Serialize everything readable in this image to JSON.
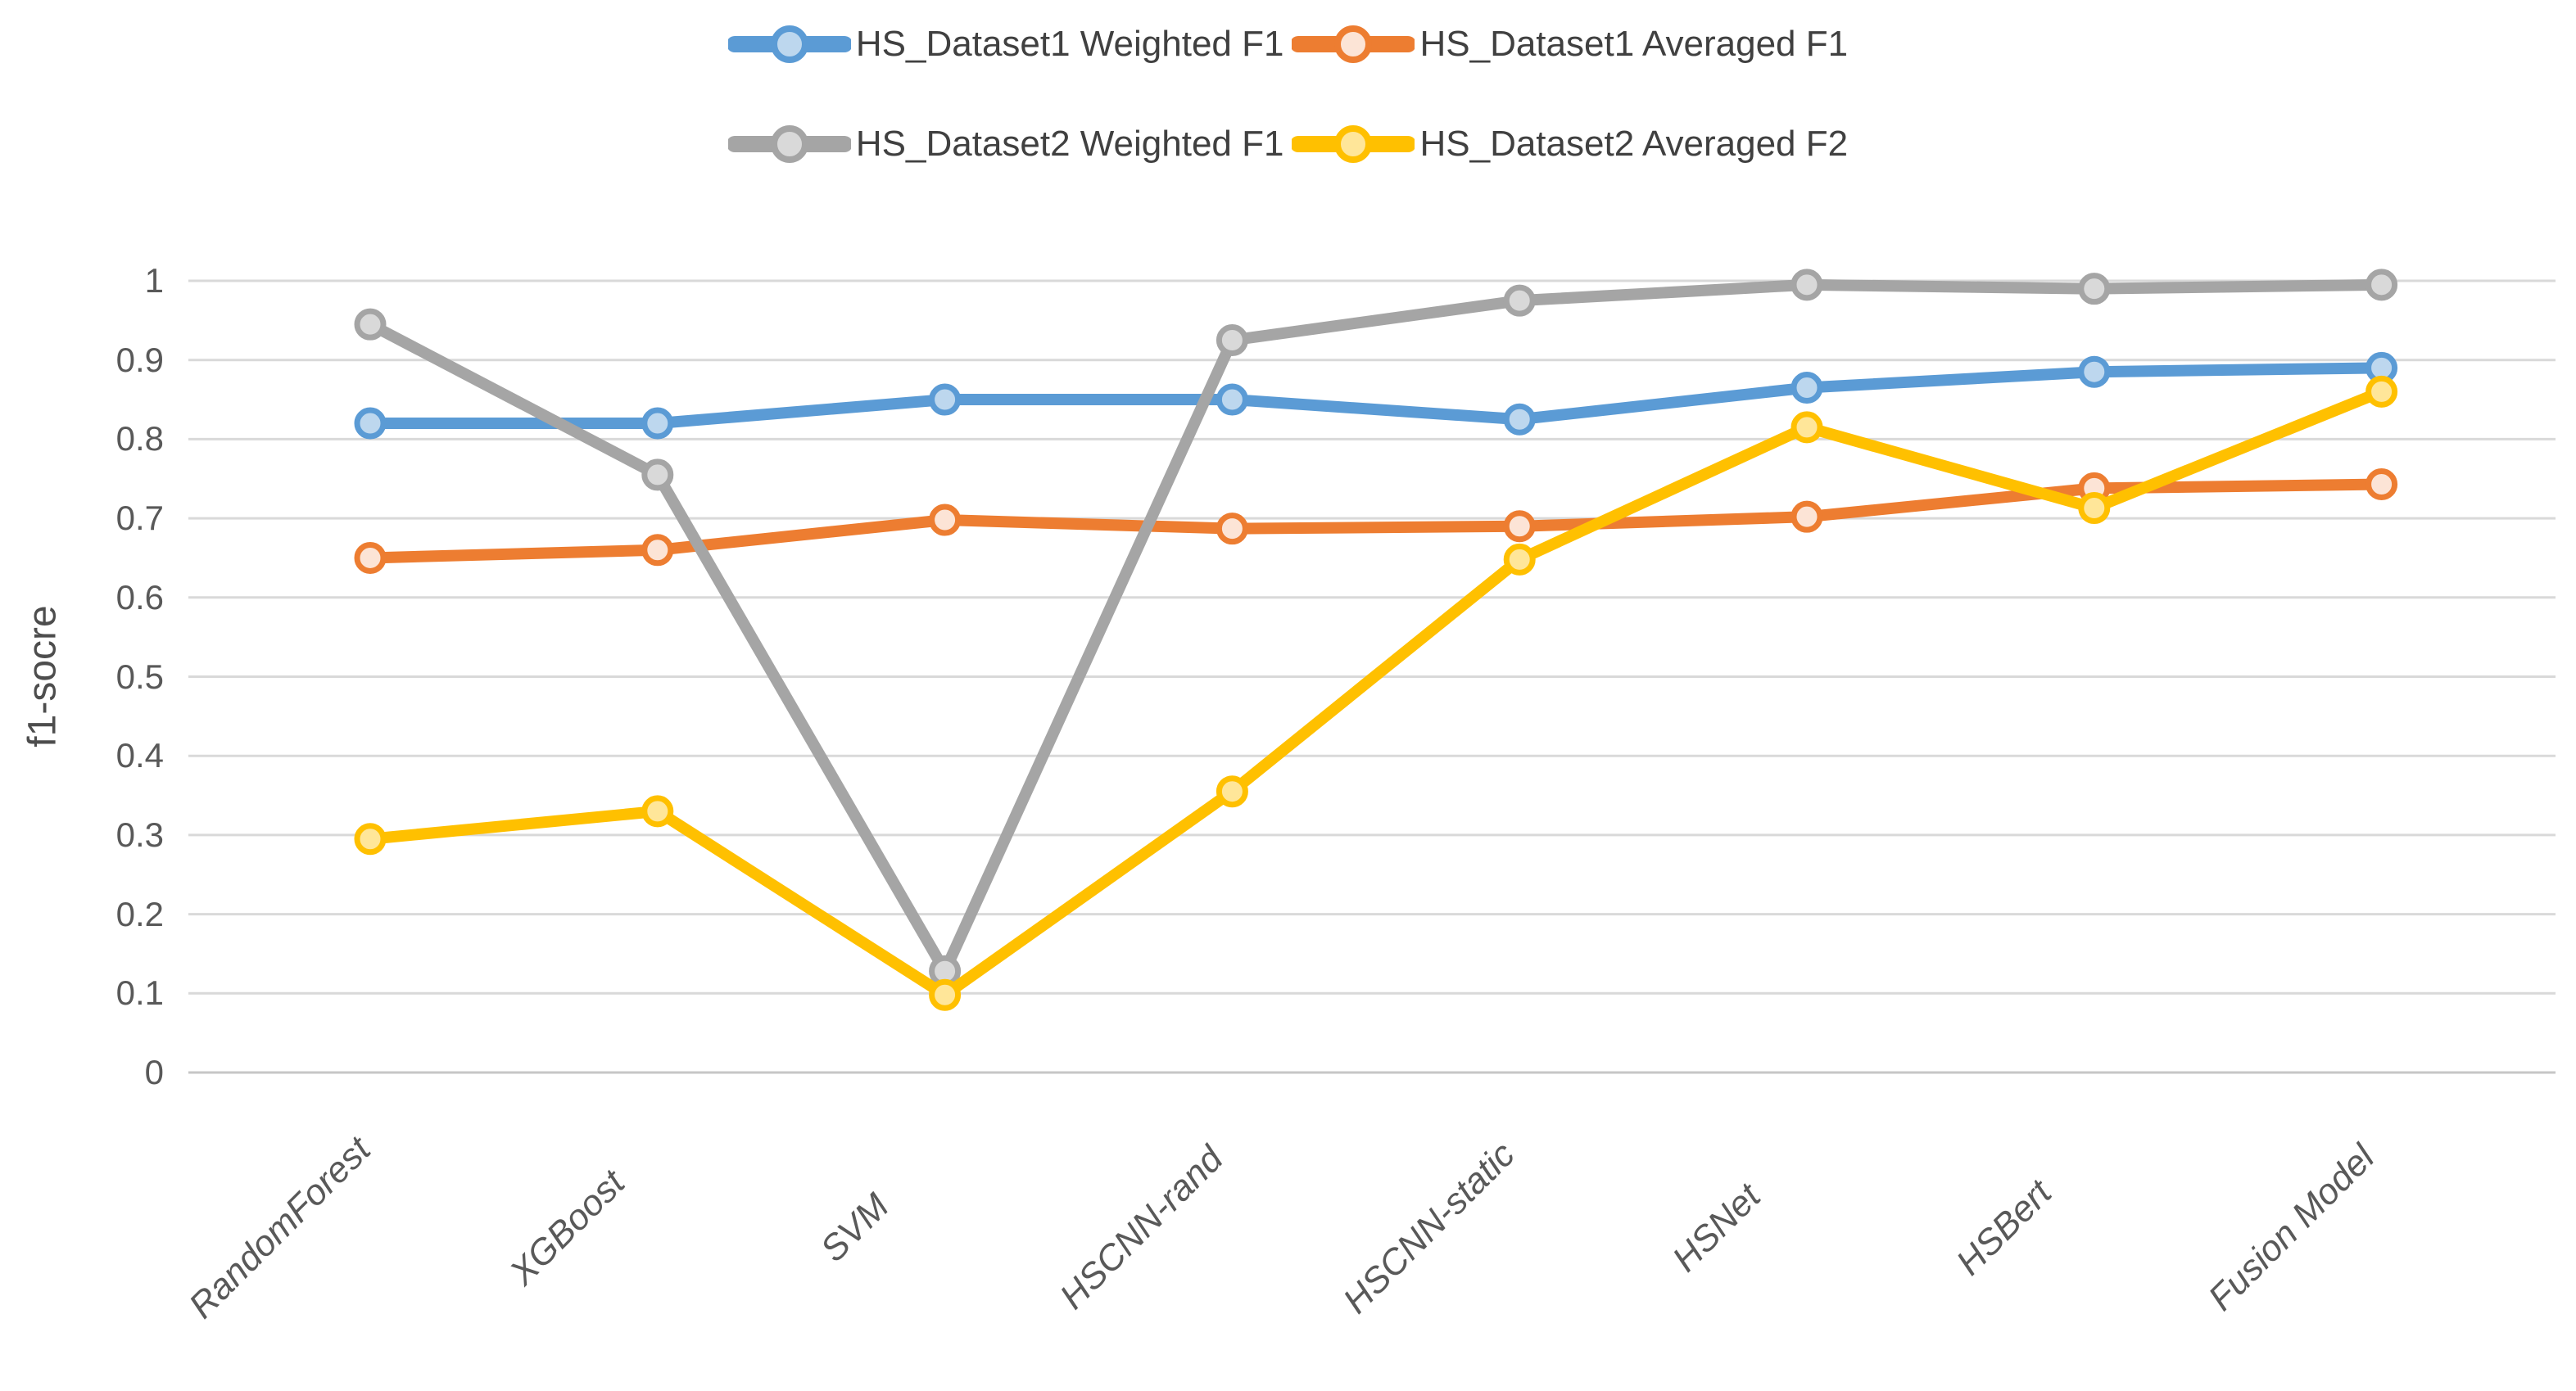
{
  "chart_data": {
    "type": "line",
    "title": "",
    "ylabel": "f1-socre",
    "xlabel": "",
    "ylim": [
      0,
      1
    ],
    "ytick_step": 0.1,
    "ytick_labels": [
      "1",
      "0.9",
      "0.8",
      "0.7",
      "0.6",
      "0.5",
      "0.4",
      "0.3",
      "0.2",
      "0.1",
      "0"
    ],
    "grid": "horizontal",
    "legend_position": "top-center-two-rows",
    "legend_rows": [
      [
        0,
        1
      ],
      [
        2,
        3
      ]
    ],
    "categories": [
      "RandomForest",
      "XGBoost",
      "SVM",
      "HSCNN-rand",
      "HSCNN-static",
      "HSNet",
      "HSBert",
      "Fusion Model"
    ],
    "series": [
      {
        "name": "HS_Dataset1 Weighted F1",
        "color": "#5B9BD5",
        "marker_fill": "#BDD7EE",
        "values": [
          0.82,
          0.82,
          0.85,
          0.85,
          0.825,
          0.865,
          0.885,
          0.89
        ]
      },
      {
        "name": "HS_Dataset1 Averaged F1",
        "color": "#ED7D31",
        "marker_fill": "#FCE4D6",
        "values": [
          0.65,
          0.66,
          0.698,
          0.687,
          0.69,
          0.702,
          0.738,
          0.743
        ]
      },
      {
        "name": "HS_Dataset2 Weighted F1",
        "color": "#A5A5A5",
        "marker_fill": "#D9D9D9",
        "values": [
          0.945,
          0.755,
          0.128,
          0.925,
          0.975,
          0.995,
          0.99,
          0.995
        ]
      },
      {
        "name": "HS_Dataset2 Averaged F2",
        "color": "#FFC000",
        "marker_fill": "#FFE699",
        "values": [
          0.295,
          0.33,
          0.098,
          0.355,
          0.648,
          0.815,
          0.713,
          0.86
        ]
      }
    ]
  },
  "colors": {
    "gridline": "#D9D9D9",
    "baseline": "#C6C6C6",
    "tick_text": "#595959",
    "legend_text": "#404040",
    "background": "#FFFFFF"
  }
}
